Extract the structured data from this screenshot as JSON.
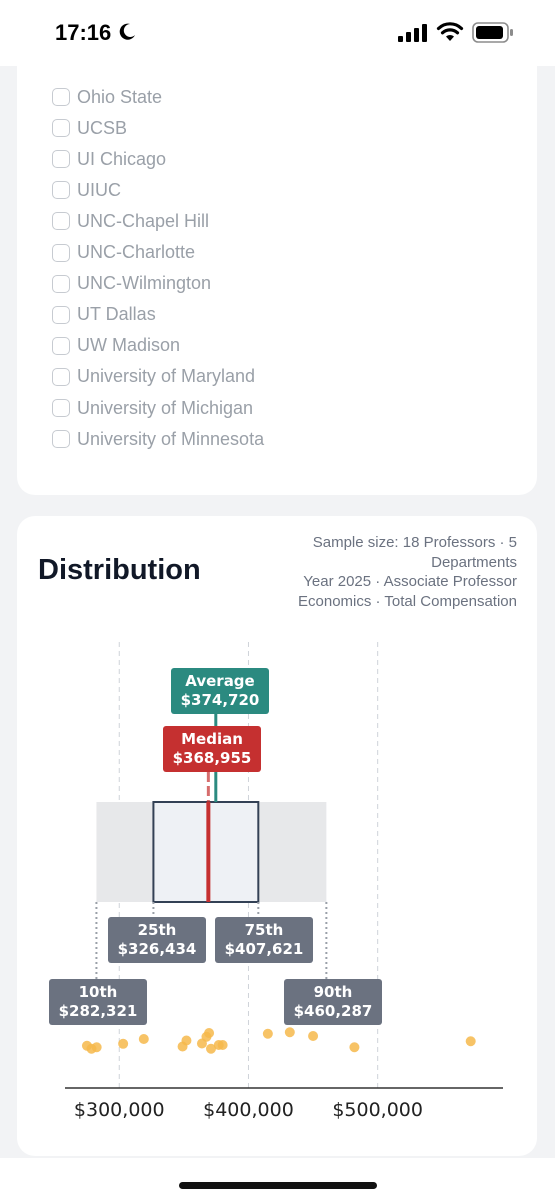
{
  "status": {
    "time": "17:16"
  },
  "filters": {
    "items": [
      "Ohio State",
      "UCSB",
      "UI Chicago",
      "UIUC",
      "UNC-Chapel Hill",
      "UNC-Charlotte",
      "UNC-Wilmington",
      "UT Dallas",
      "UW Madison",
      "University of Maryland",
      "University of Michigan",
      "University of Minnesota"
    ]
  },
  "distribution": {
    "title": "Distribution",
    "meta_line1": "Sample size: 18 Professors · 5",
    "meta_line2": "Departments",
    "meta_line3": "Year 2025 · Associate Professor",
    "meta_line4": "Economics · Total Compensation"
  },
  "chart_data": {
    "type": "box",
    "axis": {
      "min": 258000,
      "max": 597000,
      "ticks": [
        300000,
        400000,
        500000
      ],
      "tick_labels": [
        "$300,000",
        "$400,000",
        "$500,000"
      ]
    },
    "stats": {
      "p10": {
        "label": "10th",
        "value": 282321,
        "display": "$282,321"
      },
      "p25": {
        "label": "25th",
        "value": 326434,
        "display": "$326,434"
      },
      "median": {
        "label": "Median",
        "value": 368955,
        "display": "$368,955"
      },
      "average": {
        "label": "Average",
        "value": 374720,
        "display": "$374,720"
      },
      "p75": {
        "label": "75th",
        "value": 407621,
        "display": "$407,621"
      },
      "p90": {
        "label": "90th",
        "value": 460287,
        "display": "$460,287"
      }
    },
    "points": [
      {
        "value": 275000,
        "level": 0.55
      },
      {
        "value": 278500,
        "level": 0.35
      },
      {
        "value": 282500,
        "level": 0.45
      },
      {
        "value": 303000,
        "level": 0.68
      },
      {
        "value": 319000,
        "level": 1.0
      },
      {
        "value": 349000,
        "level": 0.5
      },
      {
        "value": 352000,
        "level": 0.9
      },
      {
        "value": 364000,
        "level": 0.7
      },
      {
        "value": 367500,
        "level": 1.15
      },
      {
        "value": 369500,
        "level": 1.4
      },
      {
        "value": 371000,
        "level": 0.35
      },
      {
        "value": 377000,
        "level": 0.6
      },
      {
        "value": 380000,
        "level": 0.6
      },
      {
        "value": 415000,
        "level": 1.35
      },
      {
        "value": 432000,
        "level": 1.45
      },
      {
        "value": 450000,
        "level": 1.2
      },
      {
        "value": 482000,
        "level": 0.45
      },
      {
        "value": 572000,
        "level": 0.85
      }
    ],
    "colors": {
      "average": "#2b8a80",
      "median": "#c53030",
      "percentile": "#6b7280",
      "box": "#334155",
      "box_fill": "#eef1f5",
      "range_fill": "#e7e8ea",
      "point": "#f6b84b"
    }
  }
}
